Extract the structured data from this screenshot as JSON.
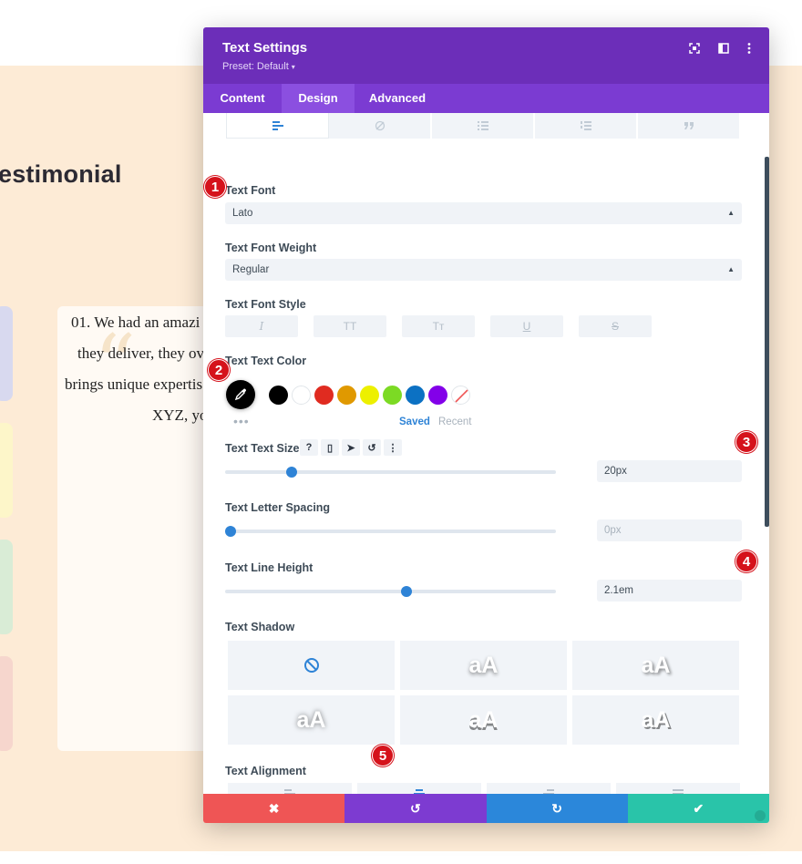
{
  "background": {
    "heading": "estimonial",
    "card_lines": [
      "01. We had an amazi",
      "they deliver, they ov",
      "brings unique expertis",
      "XYZ, yo"
    ],
    "quote_mark": "“"
  },
  "modal": {
    "title": "Text Settings",
    "preset": "Preset: Default",
    "header_icons": [
      "expand-icon",
      "sidebar-toggle-icon",
      "more-vertical-icon"
    ],
    "tabs": [
      "Content",
      "Design",
      "Advanced"
    ],
    "active_tab": "Design",
    "subtab_icons": [
      "align-left-icon",
      "link-icon",
      "list-icon",
      "ordered-list-icon",
      "quote-icon"
    ],
    "text_font": {
      "label": "Text Font",
      "value": "Lato"
    },
    "text_font_weight": {
      "label": "Text Font Weight",
      "value": "Regular"
    },
    "text_font_style": {
      "label": "Text Font Style",
      "buttons": [
        "I",
        "TT",
        "Tт",
        "U",
        "S"
      ]
    },
    "text_color": {
      "label": "Text Text Color",
      "swatches": [
        "#000000",
        "#ffffff",
        "#e02b20",
        "#e09900",
        "#edf000",
        "#7cda24",
        "#0c71c3",
        "#8300e9"
      ],
      "saved": "Saved",
      "recent": "Recent"
    },
    "text_size": {
      "label": "Text Text Size",
      "value": "20px",
      "slider": 0.19,
      "tools": [
        "?",
        "▯",
        "➤",
        "↺",
        "⋮"
      ]
    },
    "letter_spacing": {
      "label": "Text Letter Spacing",
      "value": "0px",
      "slider": 0.0
    },
    "line_height": {
      "label": "Text Line Height",
      "value": "2.1em",
      "slider": 0.55
    },
    "text_shadow": {
      "label": "Text Shadow",
      "tiles": [
        "none",
        "aA",
        "aA",
        "aA",
        "aA",
        "aA"
      ]
    },
    "text_alignment": {
      "label": "Text Alignment",
      "options": [
        "left",
        "center",
        "right",
        "justify"
      ],
      "active": "center"
    }
  },
  "footer": {
    "cancel": "✖",
    "undo": "↺",
    "redo": "↻",
    "save": "✔"
  },
  "badges": [
    "1",
    "2",
    "3",
    "4",
    "5"
  ],
  "colors": {
    "header": "#6c2eb9",
    "tabs": "#7b3bd2",
    "accent": "#2e83d6",
    "badge": "#d5121b"
  }
}
